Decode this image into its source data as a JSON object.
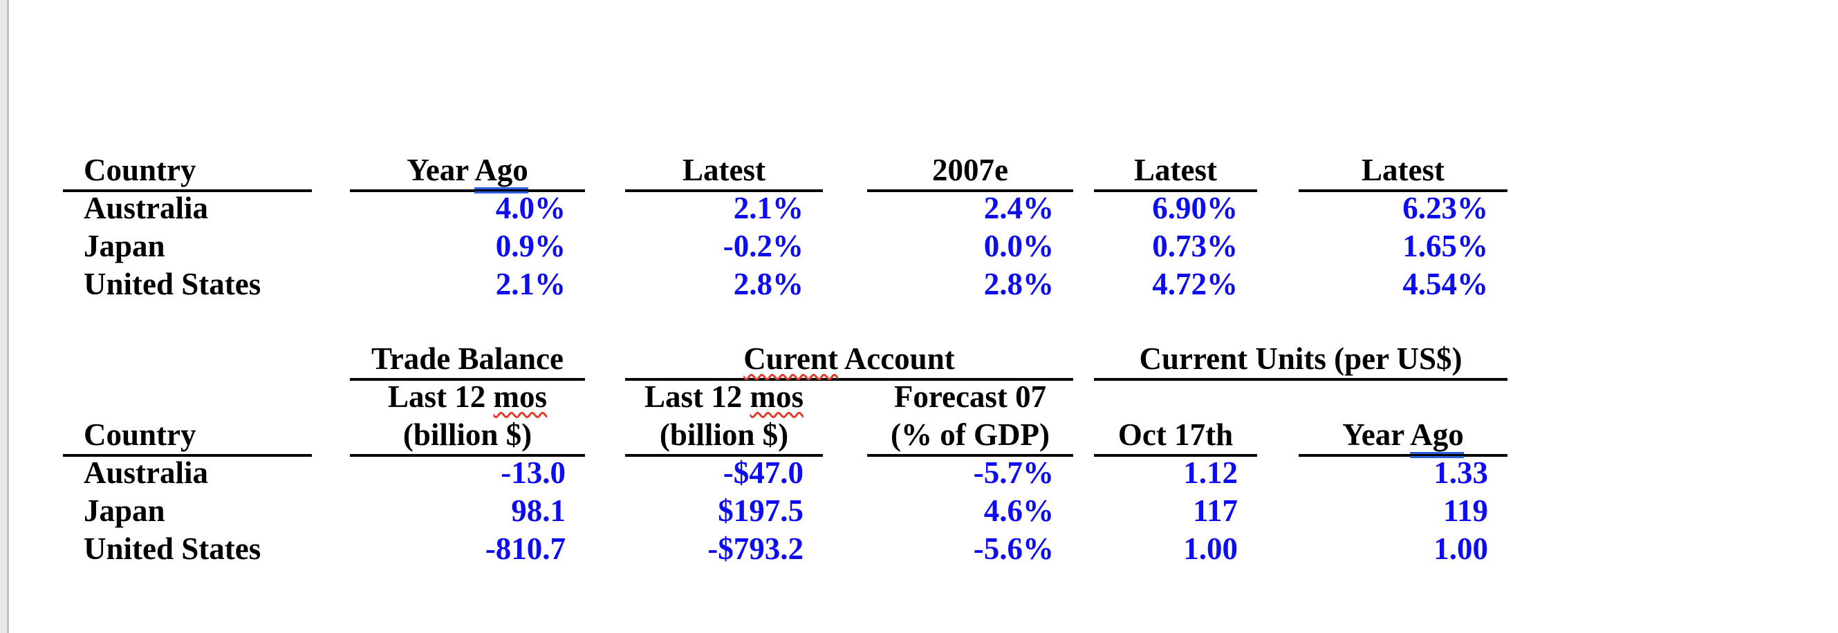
{
  "colors": {
    "value_blue": "#0d0df0",
    "text_black": "#000000",
    "rule_black": "#000000",
    "spell_red": "#e03c2c",
    "grammar_blue": "#2f5fe0",
    "page_bg": "#ffffff",
    "gutter_bg": "#e9e9e9",
    "gutter_border": "#c2c2c5"
  },
  "table1": {
    "headers": [
      {
        "label": "Country"
      },
      {
        "pre": "Year",
        "grammar_marked": "Ago"
      },
      {
        "label": "Latest"
      },
      {
        "label": "2007e"
      },
      {
        "label": "Latest"
      },
      {
        "label": "Latest"
      }
    ],
    "rows": [
      {
        "country": "Australia",
        "values": [
          "4.0%",
          "2.1%",
          "2.4%",
          "6.90%",
          "6.23%"
        ]
      },
      {
        "country": "Japan",
        "values": [
          "0.9%",
          "-0.2%",
          "0.0%",
          "0.73%",
          "1.65%"
        ]
      },
      {
        "country": "United States",
        "values": [
          "2.1%",
          "2.8%",
          "2.8%",
          "4.72%",
          "4.54%"
        ]
      }
    ]
  },
  "table2": {
    "group_headers": [
      {
        "label": "Trade Balance"
      },
      {
        "spell_marked": "Curent",
        "post": "Account"
      },
      {
        "label": "Current Units (per US$)"
      }
    ],
    "subheaders_top": [
      {
        "pre": "Last 12",
        "spell_marked": "mos"
      },
      {
        "pre": "Last 12",
        "spell_marked": "mos"
      },
      {
        "label": "Forecast 07"
      }
    ],
    "subheaders_bottom": [
      {
        "label": "Country"
      },
      {
        "label": "(billion $)"
      },
      {
        "label": "(billion $)"
      },
      {
        "label": "(% of GDP)"
      },
      {
        "label": "Oct 17th"
      },
      {
        "pre": "Year",
        "grammar_marked": "Ago"
      }
    ],
    "rows": [
      {
        "country": "Australia",
        "values": [
          "-13.0",
          "-$47.0",
          "-5.7%",
          "1.12",
          "1.33"
        ]
      },
      {
        "country": "Japan",
        "values": [
          "98.1",
          "$197.5",
          "4.6%",
          "117",
          "119"
        ]
      },
      {
        "country": "United States",
        "values": [
          "-810.7",
          "-$793.2",
          "-5.6%",
          "1.00",
          "1.00"
        ]
      }
    ]
  }
}
